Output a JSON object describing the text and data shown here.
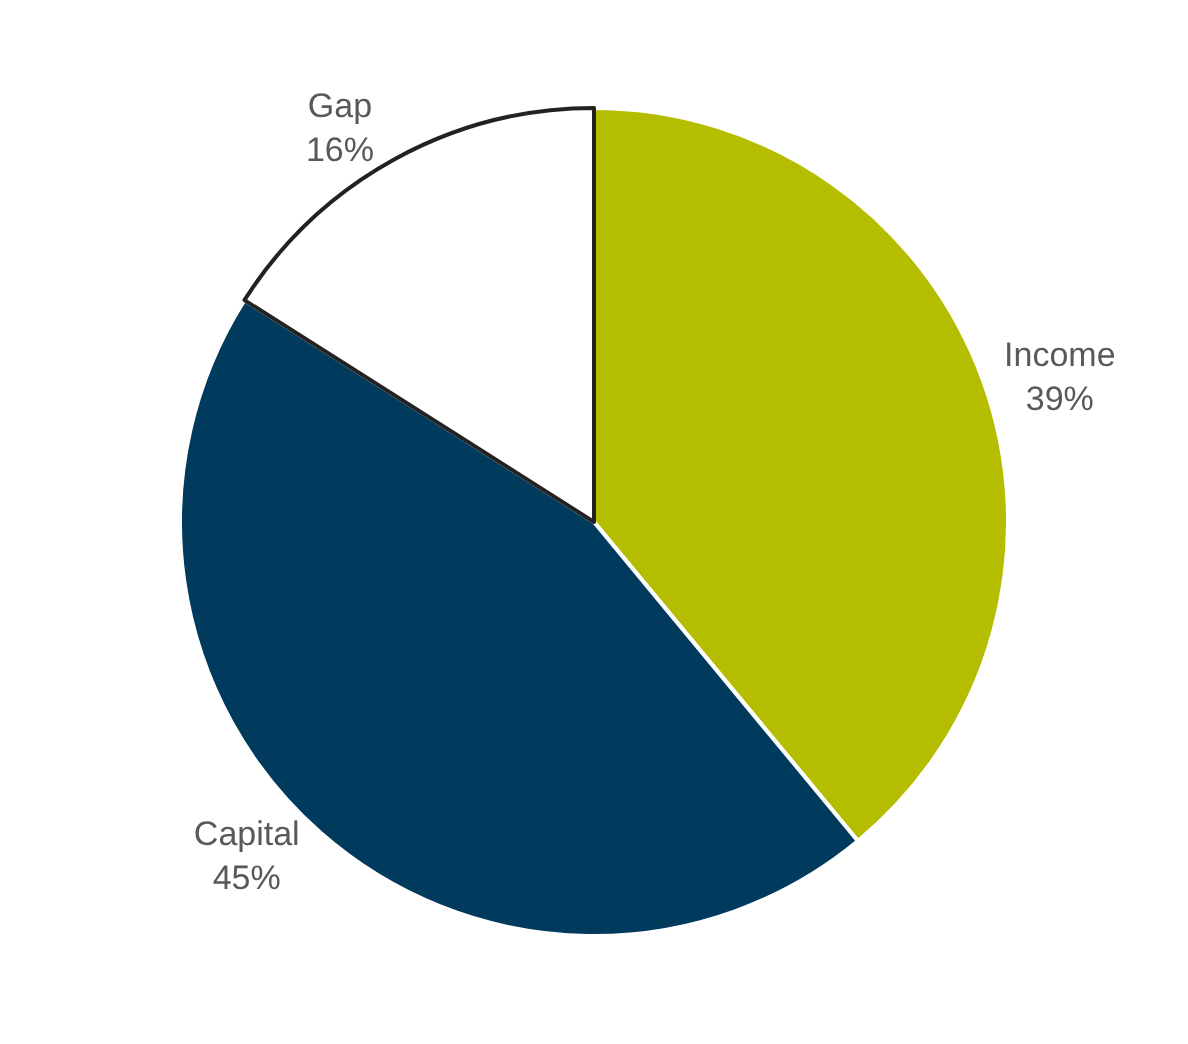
{
  "chart_data": {
    "type": "pie",
    "categories": [
      "Income",
      "Capital",
      "Gap"
    ],
    "values": [
      39,
      45,
      16
    ],
    "value_labels": [
      "39%",
      "45%",
      "16%"
    ],
    "colors": [
      "#b5bd00",
      "#003a5c",
      "#ffffff"
    ]
  }
}
